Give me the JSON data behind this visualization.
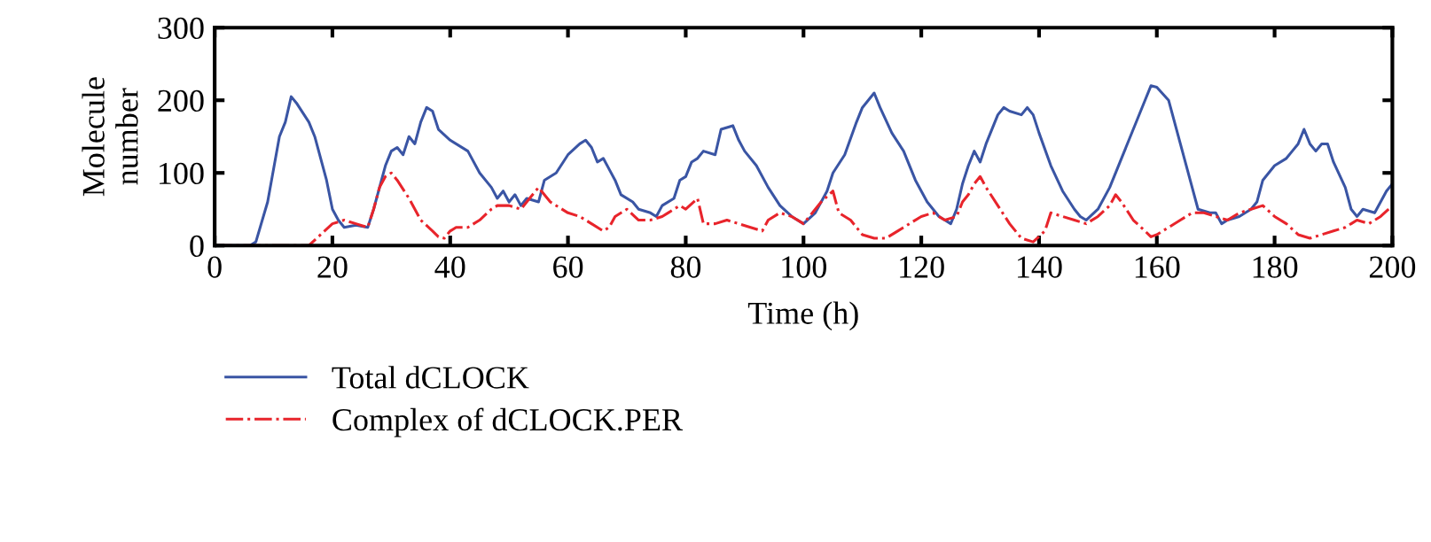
{
  "chart_data": {
    "type": "line",
    "xlabel": "Time (h)",
    "ylabel": "Molecule\nnumber",
    "xlim": [
      0,
      200
    ],
    "ylim": [
      0,
      300
    ],
    "xticks": [
      0,
      20,
      40,
      60,
      80,
      100,
      120,
      140,
      160,
      180,
      200
    ],
    "yticks": [
      0,
      100,
      200,
      300
    ],
    "grid": false,
    "legend": "bottom left",
    "marker": "none",
    "series": [
      {
        "name": "Total dCLOCK",
        "color": "#3a55a4",
        "line_style": "solid",
        "x": [
          0,
          6,
          7,
          9,
          11,
          12,
          13,
          14,
          16,
          17,
          19,
          20,
          21,
          22,
          24,
          26,
          27,
          28,
          29,
          30,
          31,
          32,
          33,
          34,
          35,
          36,
          37,
          38,
          40,
          43,
          45,
          47,
          48,
          49,
          50,
          51,
          52,
          53,
          55,
          56,
          58,
          60,
          62,
          63,
          64,
          65,
          66,
          67,
          68,
          69,
          71,
          72,
          74,
          75,
          76,
          78,
          79,
          80,
          81,
          82,
          83,
          85,
          86,
          88,
          89,
          90,
          92,
          94,
          96,
          98,
          100,
          102,
          104,
          105,
          107,
          109,
          110,
          111,
          112,
          113,
          115,
          117,
          119,
          121,
          122,
          123,
          124,
          125,
          126,
          127,
          128,
          129,
          130,
          131,
          133,
          134,
          135,
          137,
          138,
          139,
          140,
          142,
          144,
          146,
          147,
          148,
          150,
          152,
          154,
          156,
          158,
          159,
          160,
          162,
          164,
          166,
          167,
          169,
          170,
          171,
          172,
          174,
          176,
          177,
          178,
          180,
          182,
          183,
          184,
          185,
          186,
          187,
          188,
          189,
          190,
          192,
          193,
          194,
          195,
          197,
          198,
          199,
          200
        ],
        "values": [
          0,
          0,
          5,
          60,
          150,
          170,
          205,
          195,
          170,
          150,
          90,
          50,
          35,
          25,
          28,
          25,
          50,
          80,
          110,
          130,
          135,
          125,
          150,
          140,
          170,
          190,
          185,
          160,
          145,
          130,
          100,
          80,
          65,
          75,
          60,
          70,
          55,
          65,
          60,
          90,
          100,
          125,
          140,
          145,
          135,
          115,
          120,
          105,
          90,
          70,
          60,
          50,
          45,
          40,
          55,
          65,
          90,
          95,
          115,
          120,
          130,
          125,
          160,
          165,
          145,
          130,
          110,
          80,
          55,
          40,
          30,
          45,
          75,
          100,
          125,
          170,
          190,
          200,
          210,
          190,
          155,
          130,
          90,
          60,
          50,
          40,
          35,
          30,
          50,
          85,
          110,
          130,
          115,
          140,
          180,
          190,
          185,
          180,
          190,
          180,
          155,
          110,
          75,
          50,
          40,
          35,
          50,
          80,
          120,
          160,
          200,
          220,
          218,
          200,
          140,
          80,
          50,
          45,
          45,
          30,
          35,
          40,
          50,
          60,
          90,
          110,
          120,
          130,
          140,
          160,
          140,
          130,
          140,
          140,
          115,
          80,
          50,
          40,
          50,
          45,
          60,
          75,
          85
        ]
      },
      {
        "name": "Complex of dCLOCK.PER",
        "color": "#e8242b",
        "line_style": "dashdot",
        "x": [
          0,
          16,
          18,
          20,
          22,
          24,
          26,
          27,
          28,
          29,
          30,
          31,
          33,
          35,
          37,
          38,
          39,
          40,
          41,
          43,
          45,
          47,
          48,
          50,
          52,
          53,
          55,
          57,
          60,
          62,
          64,
          66,
          67,
          68,
          70,
          72,
          74,
          76,
          77,
          79,
          80,
          82,
          83,
          85,
          87,
          89,
          91,
          93,
          94,
          96,
          98,
          100,
          102,
          103,
          105,
          106,
          108,
          110,
          112,
          114,
          116,
          118,
          120,
          122,
          124,
          126,
          127,
          128,
          129,
          130,
          131,
          133,
          135,
          137,
          139,
          141,
          142,
          144,
          146,
          148,
          150,
          152,
          153,
          154,
          156,
          158,
          159,
          160,
          162,
          164,
          166,
          168,
          170,
          172,
          174,
          176,
          178,
          180,
          182,
          184,
          186,
          188,
          190,
          192,
          194,
          196,
          198,
          200
        ],
        "values": [
          0,
          0,
          15,
          30,
          35,
          30,
          25,
          50,
          80,
          95,
          100,
          90,
          65,
          35,
          20,
          12,
          10,
          20,
          25,
          25,
          35,
          50,
          55,
          55,
          50,
          60,
          80,
          60,
          45,
          40,
          30,
          20,
          25,
          40,
          50,
          35,
          35,
          40,
          45,
          55,
          50,
          65,
          30,
          30,
          35,
          30,
          25,
          20,
          35,
          45,
          40,
          30,
          50,
          60,
          75,
          45,
          35,
          15,
          10,
          10,
          20,
          30,
          40,
          45,
          35,
          40,
          60,
          70,
          85,
          95,
          80,
          55,
          30,
          10,
          5,
          20,
          45,
          40,
          35,
          30,
          40,
          55,
          70,
          60,
          35,
          20,
          12,
          15,
          25,
          35,
          45,
          45,
          40,
          35,
          45,
          50,
          55,
          40,
          30,
          15,
          10,
          15,
          20,
          25,
          35,
          30,
          40,
          55
        ]
      }
    ]
  }
}
